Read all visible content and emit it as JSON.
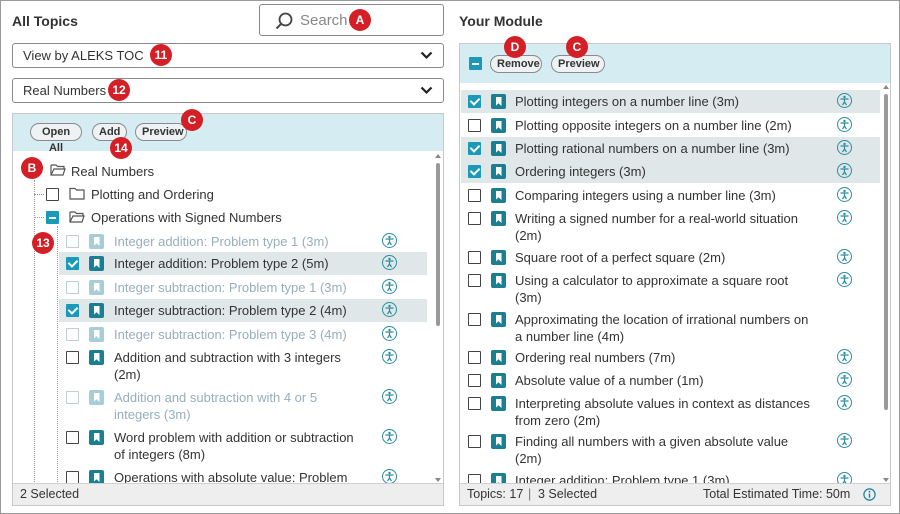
{
  "left": {
    "title": "All Topics",
    "search_placeholder": "Search",
    "view_dropdown": "View by ALEKS TOC",
    "subject_dropdown": "Real Numbers",
    "buttons": {
      "open_all": "Open All",
      "add": "Add",
      "preview": "Preview"
    },
    "tree_root": "Real Numbers",
    "folders": [
      "Plotting and Ordering",
      "Operations with Signed Numbers"
    ],
    "topics": [
      {
        "l1": "Integer addition: Problem type 1 (3m)",
        "l2": ""
      },
      {
        "l1": "Integer addition: Problem type 2 (5m)",
        "l2": ""
      },
      {
        "l1": "Integer subtraction: Problem type 1 (3m)",
        "l2": ""
      },
      {
        "l1": "Integer subtraction: Problem type 2 (4m)",
        "l2": ""
      },
      {
        "l1": "Integer subtraction: Problem type 3 (4m)",
        "l2": ""
      },
      {
        "l1": "Addition and subtraction with 3 integers",
        "l2": "(2m)"
      },
      {
        "l1": "Addition and subtraction with 4 or 5",
        "l2": "integers (3m)"
      },
      {
        "l1": "Word problem with addition or subtraction",
        "l2": "of integers (8m)"
      },
      {
        "l1": "Operations with absolute value: Problem",
        "l2": ""
      }
    ],
    "footer": "2 Selected"
  },
  "right": {
    "title": "Your Module",
    "buttons": {
      "remove": "Remove",
      "preview": "Preview"
    },
    "topics": [
      {
        "l1": "Plotting integers on a number line (3m)",
        "l2": ""
      },
      {
        "l1": "Plotting opposite integers on a number line (2m)",
        "l2": ""
      },
      {
        "l1": "Plotting rational numbers on a number line (3m)",
        "l2": ""
      },
      {
        "l1": "Ordering integers (3m)",
        "l2": ""
      },
      {
        "l1": "Comparing integers using a number line (3m)",
        "l2": ""
      },
      {
        "l1": "Writing a signed number for a real-world situation",
        "l2": "(2m)"
      },
      {
        "l1": "Square root of a perfect square (2m)",
        "l2": ""
      },
      {
        "l1": "Using a calculator to approximate a square root",
        "l2": "(3m)"
      },
      {
        "l1": "Approximating the location of irrational numbers on",
        "l2": "a number line (4m)"
      },
      {
        "l1": "Ordering real numbers (7m)",
        "l2": ""
      },
      {
        "l1": "Absolute value of a number (1m)",
        "l2": ""
      },
      {
        "l1": "Interpreting absolute values in context as distances",
        "l2": "from zero (2m)"
      },
      {
        "l1": "Finding all numbers with a given absolute value",
        "l2": "(2m)"
      },
      {
        "l1": "Integer addition: Problem type 1 (3m)",
        "l2": ""
      }
    ],
    "footer": {
      "topics": "Topics: 17",
      "separator": "|",
      "selected": "3 Selected",
      "time": "Total Estimated Time: 50m"
    }
  },
  "callouts": {
    "A": "A",
    "B": "B",
    "C": "C",
    "D": "D",
    "n11": "11",
    "n12": "12",
    "n13": "13",
    "n14": "14"
  },
  "colors": {
    "accent": "#1a9ab8",
    "toolbar": "#d4ecf2",
    "callout": "#d41f26",
    "bookmark": "#1b7f93"
  },
  "icons": [
    "search-icon",
    "chevron-down-icon",
    "folder-icon",
    "bookmark-icon",
    "accessibility-icon",
    "info-icon",
    "collapse-triangle-icon"
  ]
}
